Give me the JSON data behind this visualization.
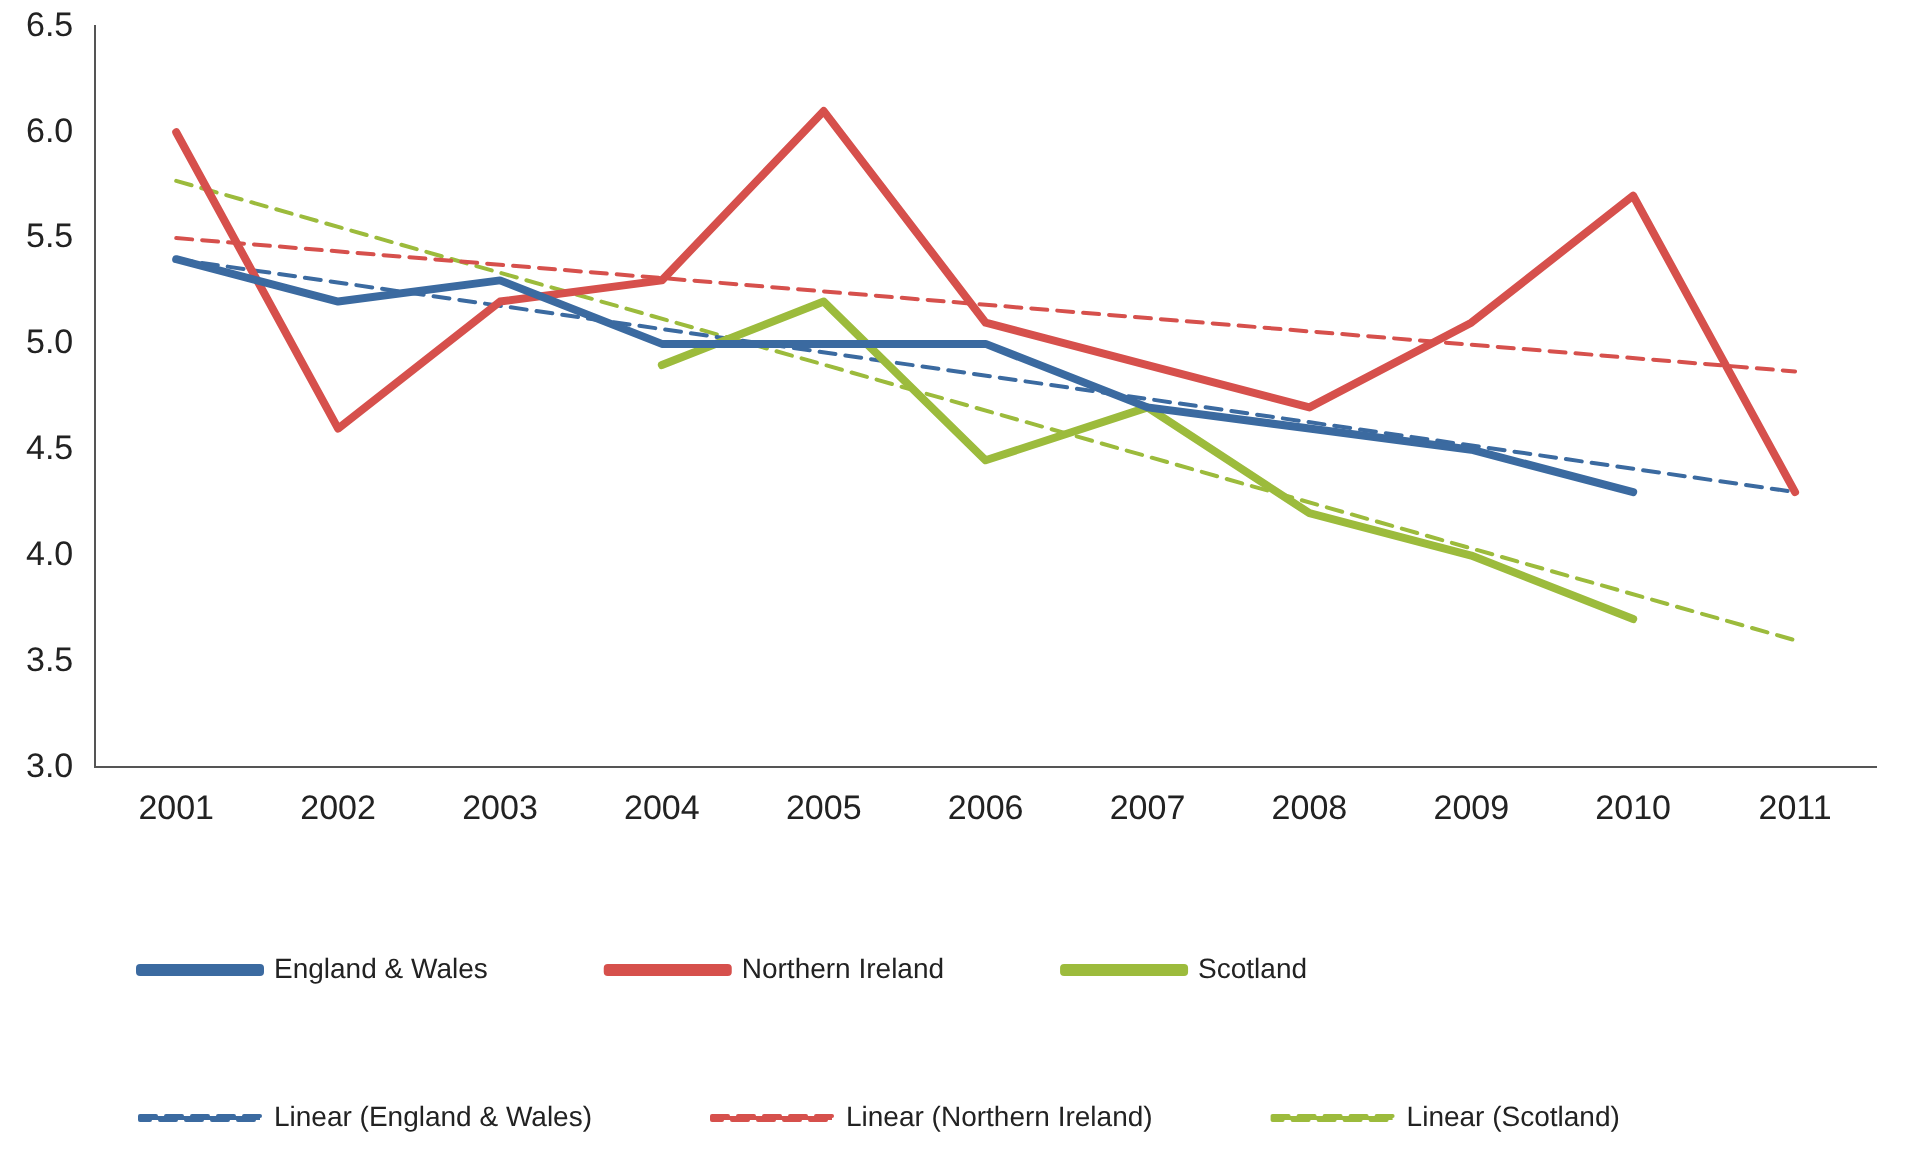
{
  "chart_data": {
    "type": "line",
    "categories": [
      "2001",
      "2002",
      "2003",
      "2004",
      "2005",
      "2006",
      "2007",
      "2008",
      "2009",
      "2010",
      "2011"
    ],
    "series": [
      {
        "name": "England & Wales",
        "color": "#3b6aa0",
        "values": [
          5.4,
          5.2,
          5.3,
          5.0,
          5.0,
          5.0,
          4.7,
          4.6,
          4.5,
          4.3,
          null
        ]
      },
      {
        "name": "Northern Ireland",
        "color": "#d6504c",
        "values": [
          6.0,
          4.6,
          5.2,
          5.3,
          6.1,
          5.1,
          4.9,
          4.7,
          5.1,
          5.7,
          4.3
        ]
      },
      {
        "name": "Scotland",
        "color": "#9cbb3c",
        "values": [
          null,
          null,
          null,
          4.9,
          5.2,
          4.45,
          4.7,
          4.2,
          4.0,
          3.7,
          null
        ]
      },
      {
        "name": "Linear (England & Wales)",
        "color": "#3b6aa0",
        "line_style": "dashed",
        "values": [
          5.4,
          null,
          null,
          null,
          null,
          null,
          null,
          null,
          null,
          null,
          4.3
        ]
      },
      {
        "name": "Linear (Northern Ireland)",
        "color": "#d6504c",
        "line_style": "dashed",
        "values": [
          5.5,
          null,
          null,
          null,
          null,
          null,
          null,
          null,
          null,
          null,
          4.87
        ]
      },
      {
        "name": "Linear (Scotland)",
        "color": "#9cbb3c",
        "line_style": "dashed",
        "values": [
          5.77,
          null,
          null,
          null,
          null,
          null,
          null,
          null,
          null,
          null,
          3.6
        ]
      }
    ],
    "ylim": [
      3.0,
      6.5
    ],
    "yticks": [
      {
        "value": 3.0,
        "label": "3.0"
      },
      {
        "value": 3.5,
        "label": "3.5"
      },
      {
        "value": 4.0,
        "label": "4.0"
      },
      {
        "value": 4.5,
        "label": "4.5"
      },
      {
        "value": 5.0,
        "label": "5.0"
      },
      {
        "value": 5.5,
        "label": "5.5"
      },
      {
        "value": 6.0,
        "label": "6.0"
      },
      {
        "value": 6.5,
        "label": "6.5"
      }
    ],
    "grid": false,
    "legend": "bottom",
    "marker": "none",
    "line_style": "solid"
  }
}
